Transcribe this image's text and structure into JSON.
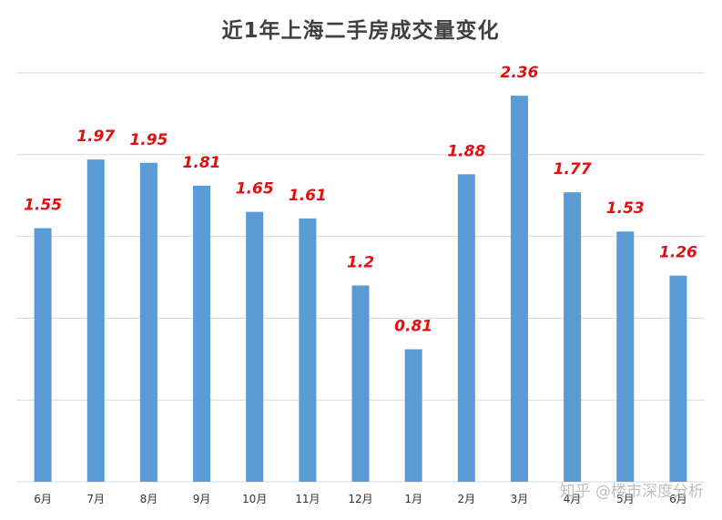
{
  "chart_data": {
    "type": "bar",
    "title": "近1年上海二手房成交量变化",
    "categories": [
      "6月",
      "7月",
      "8月",
      "9月",
      "10月",
      "11月",
      "12月",
      "1月",
      "2月",
      "3月",
      "4月",
      "5月",
      "6月"
    ],
    "values": [
      1.55,
      1.97,
      1.95,
      1.81,
      1.65,
      1.61,
      1.2,
      0.81,
      1.88,
      2.36,
      1.77,
      1.53,
      1.26
    ],
    "value_labels": [
      "1.55",
      "1.97",
      "1.95",
      "1.81",
      "1.65",
      "1.61",
      "1.2",
      "0.81",
      "1.88",
      "2.36",
      "1.77",
      "1.53",
      "1.26"
    ],
    "ylim": [
      0,
      2.5
    ],
    "grid": true,
    "xlabel": "",
    "ylabel": "",
    "colors": {
      "bar": "#5b9bd5",
      "value_label": "#e01010",
      "grid": "#d9d9d9",
      "title": "#404040"
    }
  },
  "watermark": "知乎 @楼市深度分析"
}
